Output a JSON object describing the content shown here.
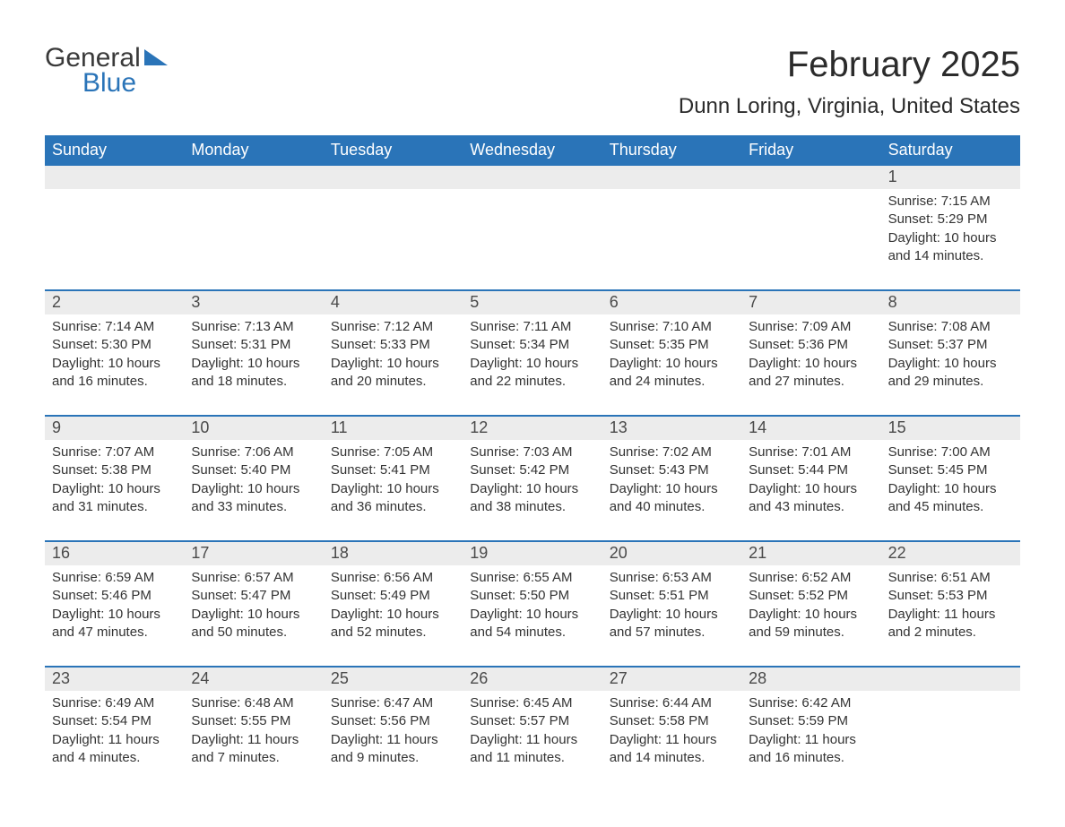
{
  "logo": {
    "text1": "General",
    "text2": "Blue"
  },
  "title": "February 2025",
  "location": "Dunn Loring, Virginia, United States",
  "colors": {
    "header_bg": "#2a74b8",
    "header_text": "#ffffff",
    "daynum_bg": "#ececec",
    "body_text": "#333333",
    "rule": "#2a74b8"
  },
  "dow": [
    "Sunday",
    "Monday",
    "Tuesday",
    "Wednesday",
    "Thursday",
    "Friday",
    "Saturday"
  ],
  "weeks": [
    [
      {
        "n": "",
        "s": ""
      },
      {
        "n": "",
        "s": ""
      },
      {
        "n": "",
        "s": ""
      },
      {
        "n": "",
        "s": ""
      },
      {
        "n": "",
        "s": ""
      },
      {
        "n": "",
        "s": ""
      },
      {
        "n": "1",
        "s": "Sunrise: 7:15 AM\nSunset: 5:29 PM\nDaylight: 10 hours and 14 minutes."
      }
    ],
    [
      {
        "n": "2",
        "s": "Sunrise: 7:14 AM\nSunset: 5:30 PM\nDaylight: 10 hours and 16 minutes."
      },
      {
        "n": "3",
        "s": "Sunrise: 7:13 AM\nSunset: 5:31 PM\nDaylight: 10 hours and 18 minutes."
      },
      {
        "n": "4",
        "s": "Sunrise: 7:12 AM\nSunset: 5:33 PM\nDaylight: 10 hours and 20 minutes."
      },
      {
        "n": "5",
        "s": "Sunrise: 7:11 AM\nSunset: 5:34 PM\nDaylight: 10 hours and 22 minutes."
      },
      {
        "n": "6",
        "s": "Sunrise: 7:10 AM\nSunset: 5:35 PM\nDaylight: 10 hours and 24 minutes."
      },
      {
        "n": "7",
        "s": "Sunrise: 7:09 AM\nSunset: 5:36 PM\nDaylight: 10 hours and 27 minutes."
      },
      {
        "n": "8",
        "s": "Sunrise: 7:08 AM\nSunset: 5:37 PM\nDaylight: 10 hours and 29 minutes."
      }
    ],
    [
      {
        "n": "9",
        "s": "Sunrise: 7:07 AM\nSunset: 5:38 PM\nDaylight: 10 hours and 31 minutes."
      },
      {
        "n": "10",
        "s": "Sunrise: 7:06 AM\nSunset: 5:40 PM\nDaylight: 10 hours and 33 minutes."
      },
      {
        "n": "11",
        "s": "Sunrise: 7:05 AM\nSunset: 5:41 PM\nDaylight: 10 hours and 36 minutes."
      },
      {
        "n": "12",
        "s": "Sunrise: 7:03 AM\nSunset: 5:42 PM\nDaylight: 10 hours and 38 minutes."
      },
      {
        "n": "13",
        "s": "Sunrise: 7:02 AM\nSunset: 5:43 PM\nDaylight: 10 hours and 40 minutes."
      },
      {
        "n": "14",
        "s": "Sunrise: 7:01 AM\nSunset: 5:44 PM\nDaylight: 10 hours and 43 minutes."
      },
      {
        "n": "15",
        "s": "Sunrise: 7:00 AM\nSunset: 5:45 PM\nDaylight: 10 hours and 45 minutes."
      }
    ],
    [
      {
        "n": "16",
        "s": "Sunrise: 6:59 AM\nSunset: 5:46 PM\nDaylight: 10 hours and 47 minutes."
      },
      {
        "n": "17",
        "s": "Sunrise: 6:57 AM\nSunset: 5:47 PM\nDaylight: 10 hours and 50 minutes."
      },
      {
        "n": "18",
        "s": "Sunrise: 6:56 AM\nSunset: 5:49 PM\nDaylight: 10 hours and 52 minutes."
      },
      {
        "n": "19",
        "s": "Sunrise: 6:55 AM\nSunset: 5:50 PM\nDaylight: 10 hours and 54 minutes."
      },
      {
        "n": "20",
        "s": "Sunrise: 6:53 AM\nSunset: 5:51 PM\nDaylight: 10 hours and 57 minutes."
      },
      {
        "n": "21",
        "s": "Sunrise: 6:52 AM\nSunset: 5:52 PM\nDaylight: 10 hours and 59 minutes."
      },
      {
        "n": "22",
        "s": "Sunrise: 6:51 AM\nSunset: 5:53 PM\nDaylight: 11 hours and 2 minutes."
      }
    ],
    [
      {
        "n": "23",
        "s": "Sunrise: 6:49 AM\nSunset: 5:54 PM\nDaylight: 11 hours and 4 minutes."
      },
      {
        "n": "24",
        "s": "Sunrise: 6:48 AM\nSunset: 5:55 PM\nDaylight: 11 hours and 7 minutes."
      },
      {
        "n": "25",
        "s": "Sunrise: 6:47 AM\nSunset: 5:56 PM\nDaylight: 11 hours and 9 minutes."
      },
      {
        "n": "26",
        "s": "Sunrise: 6:45 AM\nSunset: 5:57 PM\nDaylight: 11 hours and 11 minutes."
      },
      {
        "n": "27",
        "s": "Sunrise: 6:44 AM\nSunset: 5:58 PM\nDaylight: 11 hours and 14 minutes."
      },
      {
        "n": "28",
        "s": "Sunrise: 6:42 AM\nSunset: 5:59 PM\nDaylight: 11 hours and 16 minutes."
      },
      {
        "n": "",
        "s": ""
      }
    ]
  ]
}
